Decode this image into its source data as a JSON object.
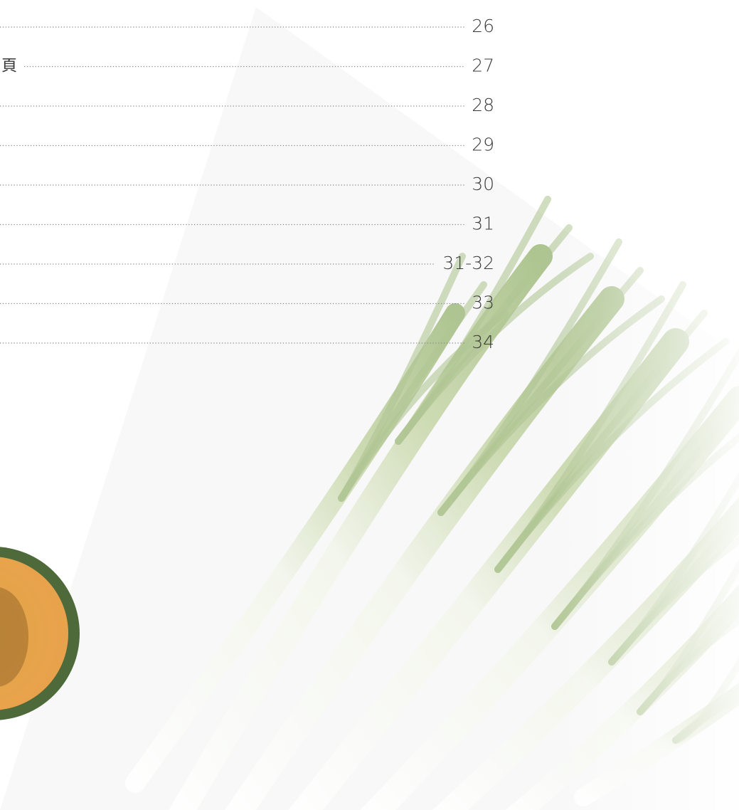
{
  "toc": {
    "entries": [
      {
        "page": "26"
      },
      {
        "title": "頁",
        "page": "27"
      },
      {
        "page": "28"
      },
      {
        "page": "29"
      },
      {
        "page": "30"
      },
      {
        "page": "31"
      },
      {
        "page": "31-32"
      },
      {
        "page": "33"
      },
      {
        "page": "34"
      }
    ]
  }
}
